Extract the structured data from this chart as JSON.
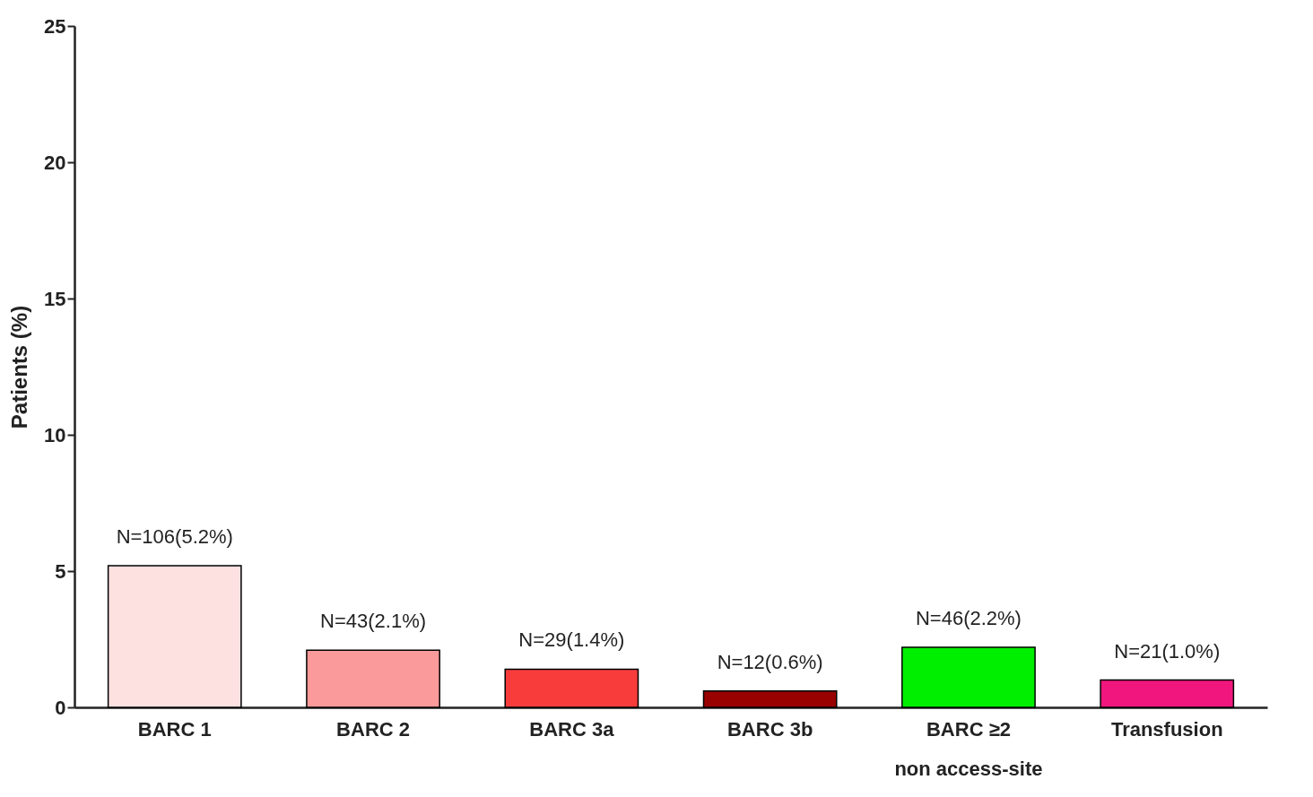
{
  "chart_data": {
    "type": "bar",
    "ylabel": "Patients (%)",
    "categories": [
      "BARC 1",
      "BARC 2",
      "BARC 3a",
      "BARC 3b",
      "BARC ≥2\nnon access-site",
      "Transfusion"
    ],
    "values": [
      5.2,
      2.1,
      1.4,
      0.6,
      2.2,
      1.0
    ],
    "colors": [
      "#fde0e0",
      "#fb9a9a",
      "#f83c3c",
      "#990000",
      "#00ee00",
      "#f0167e"
    ],
    "value_labels": [
      "N=106(5.2%)",
      "N=43(2.1%)",
      "N=29(1.4%)",
      "N=12(0.6%)",
      "N=46(2.2%)",
      "N=21(1.0%)"
    ],
    "ylim": [
      0,
      25
    ],
    "yticks": [
      0,
      5,
      10,
      15,
      20,
      25
    ],
    "grid": false,
    "legend": false
  }
}
